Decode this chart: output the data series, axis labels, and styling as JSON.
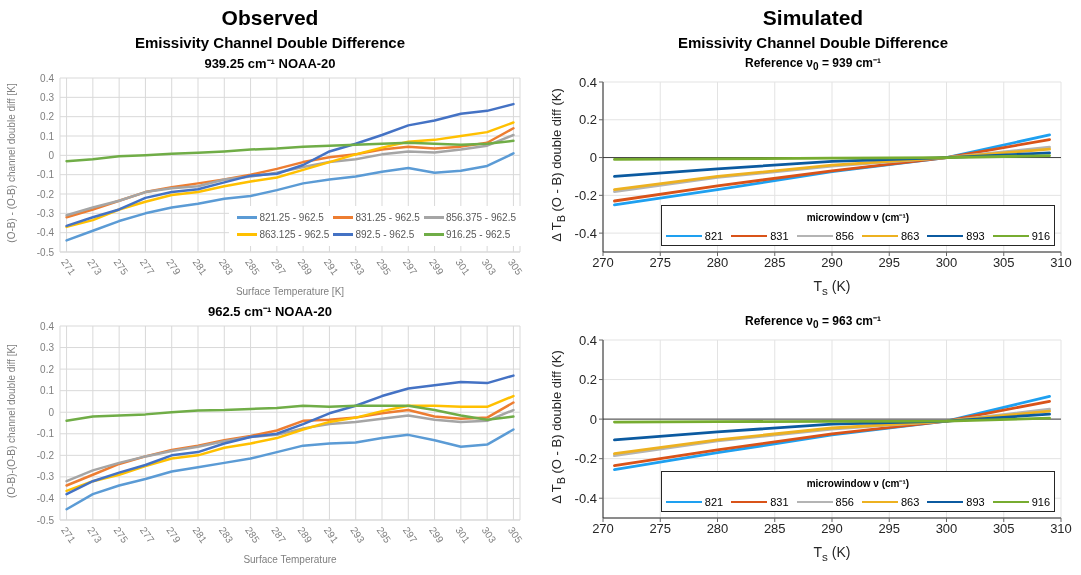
{
  "chart_data": [
    {
      "type": "line",
      "title": "Observed",
      "subtitle": "Emissivity Channel Double Difference",
      "annotations": [
        "939.25 cm⁻¹ NOAA-20"
      ],
      "xlabel": "Surface Temperature [K]",
      "ylabel": "(O-B) - (O-B)  channel double diff [K]",
      "x": [
        271,
        273,
        275,
        277,
        279,
        281,
        283,
        285,
        287,
        289,
        291,
        293,
        295,
        297,
        299,
        301,
        303,
        305
      ],
      "series": [
        {
          "name": "821.25 - 962.5",
          "color": "#5b9bd5",
          "values": [
            -0.44,
            -0.39,
            -0.34,
            -0.3,
            -0.27,
            -0.25,
            -0.225,
            -0.21,
            -0.18,
            -0.145,
            -0.125,
            -0.11,
            -0.085,
            -0.065,
            -0.09,
            -0.08,
            -0.055,
            0.01
          ]
        },
        {
          "name": "831.25 - 962.5",
          "color": "#ed7d31",
          "values": [
            -0.32,
            -0.28,
            -0.235,
            -0.19,
            -0.165,
            -0.145,
            -0.125,
            -0.1,
            -0.07,
            -0.035,
            -0.01,
            0.005,
            0.03,
            0.045,
            0.035,
            0.045,
            0.065,
            0.14
          ]
        },
        {
          "name": "856.375 - 962.5",
          "color": "#a5a5a5",
          "values": [
            -0.31,
            -0.27,
            -0.235,
            -0.19,
            -0.17,
            -0.16,
            -0.125,
            -0.11,
            -0.09,
            -0.06,
            -0.035,
            -0.02,
            0.005,
            0.02,
            0.015,
            0.03,
            0.05,
            0.105
          ]
        },
        {
          "name": "863.125 - 962.5",
          "color": "#ffc000",
          "values": [
            -0.37,
            -0.335,
            -0.28,
            -0.24,
            -0.205,
            -0.19,
            -0.16,
            -0.135,
            -0.115,
            -0.075,
            -0.035,
            0.005,
            0.04,
            0.07,
            0.08,
            0.1,
            0.12,
            0.17
          ]
        },
        {
          "name": "892.5 - 962.5",
          "color": "#4472c4",
          "values": [
            -0.365,
            -0.32,
            -0.28,
            -0.22,
            -0.19,
            -0.175,
            -0.14,
            -0.105,
            -0.095,
            -0.05,
            0.02,
            0.06,
            0.105,
            0.155,
            0.18,
            0.215,
            0.23,
            0.265
          ]
        },
        {
          "name": "916.25 - 962.5",
          "color": "#70ad47",
          "values": [
            -0.03,
            -0.02,
            -0.005,
            0.0,
            0.008,
            0.013,
            0.02,
            0.03,
            0.035,
            0.045,
            0.05,
            0.055,
            0.06,
            0.065,
            0.06,
            0.055,
            0.06,
            0.075
          ]
        }
      ],
      "xlim": [
        270.5,
        305.5
      ],
      "xticks": [
        271,
        273,
        275,
        277,
        279,
        281,
        283,
        285,
        287,
        289,
        291,
        293,
        295,
        297,
        299,
        301,
        303,
        305
      ],
      "ylim": [
        -0.5,
        0.4
      ],
      "yticks": [
        -0.5,
        -0.4,
        -0.3,
        -0.2,
        -0.1,
        0,
        0.1,
        0.2,
        0.3,
        0.4
      ],
      "grid": true,
      "legend": "bottom right",
      "marker": "none",
      "line_style": "solid"
    },
    {
      "type": "line",
      "title": "962.5 cm⁻¹ NOAA-20",
      "xlabel": "Surface Temperature",
      "ylabel": "(O-B)-(O-B)  channel double diff [K]",
      "x": [
        271,
        273,
        275,
        277,
        279,
        281,
        283,
        285,
        287,
        289,
        291,
        293,
        295,
        297,
        299,
        301,
        303,
        305
      ],
      "series": [
        {
          "color": "#5b9bd5",
          "values": [
            -0.45,
            -0.38,
            -0.34,
            -0.31,
            -0.275,
            -0.255,
            -0.235,
            -0.215,
            -0.185,
            -0.155,
            -0.145,
            -0.14,
            -0.12,
            -0.105,
            -0.13,
            -0.16,
            -0.15,
            -0.08
          ]
        },
        {
          "color": "#ed7d31",
          "values": [
            -0.34,
            -0.29,
            -0.24,
            -0.205,
            -0.175,
            -0.155,
            -0.13,
            -0.11,
            -0.085,
            -0.04,
            -0.035,
            -0.025,
            -0.005,
            0.01,
            -0.02,
            -0.03,
            -0.025,
            0.045
          ]
        },
        {
          "color": "#a5a5a5",
          "values": [
            -0.32,
            -0.27,
            -0.235,
            -0.205,
            -0.18,
            -0.16,
            -0.135,
            -0.115,
            -0.105,
            -0.075,
            -0.055,
            -0.045,
            -0.03,
            -0.015,
            -0.035,
            -0.045,
            -0.04,
            0.01
          ]
        },
        {
          "color": "#ffc000",
          "values": [
            -0.365,
            -0.32,
            -0.29,
            -0.25,
            -0.215,
            -0.2,
            -0.165,
            -0.145,
            -0.12,
            -0.08,
            -0.045,
            -0.025,
            0.005,
            0.03,
            0.03,
            0.025,
            0.025,
            0.075
          ]
        },
        {
          "color": "#4472c4",
          "values": [
            -0.38,
            -0.32,
            -0.28,
            -0.245,
            -0.2,
            -0.185,
            -0.145,
            -0.115,
            -0.1,
            -0.055,
            -0.005,
            0.03,
            0.075,
            0.11,
            0.125,
            0.14,
            0.135,
            0.17
          ]
        },
        {
          "color": "#70ad47",
          "values": [
            -0.04,
            -0.02,
            -0.015,
            -0.01,
            0.0,
            0.008,
            0.01,
            0.015,
            0.02,
            0.03,
            0.025,
            0.03,
            0.03,
            0.03,
            0.01,
            -0.015,
            -0.035,
            -0.02
          ]
        }
      ],
      "xlim": [
        270.5,
        305.5
      ],
      "xticks": [
        271,
        273,
        275,
        277,
        279,
        281,
        283,
        285,
        287,
        289,
        291,
        293,
        295,
        297,
        299,
        301,
        303,
        305
      ],
      "ylim": [
        -0.5,
        0.4
      ],
      "yticks": [
        -0.5,
        -0.4,
        -0.3,
        -0.2,
        -0.1,
        0,
        0.1,
        0.2,
        0.3,
        0.4
      ],
      "grid": true,
      "marker": "none",
      "line_style": "solid"
    },
    {
      "type": "line",
      "title": "Simulated",
      "subtitle": "Emissivity Channel Double Difference",
      "annotations": [
        "Reference ν$_{0}$ = 939 cm⁻¹"
      ],
      "xlabel": "T$_{s}$ (K)",
      "ylabel": "Δ T$_{B}$ (O - B) double diff (K)",
      "legend_title": "microwindow ν (cm⁻¹)",
      "x": [
        271,
        280,
        290,
        300,
        309
      ],
      "series": [
        {
          "name": "821",
          "color": "#1ea0f0",
          "values": [
            -0.25,
            -0.17,
            -0.075,
            0,
            0.12
          ]
        },
        {
          "name": "831",
          "color": "#d95319",
          "values": [
            -0.23,
            -0.15,
            -0.07,
            0,
            0.095
          ]
        },
        {
          "name": "856",
          "color": "#b4b4b4",
          "values": [
            -0.18,
            -0.105,
            -0.045,
            0,
            0.055
          ]
        },
        {
          "name": "863",
          "color": "#edb120",
          "values": [
            -0.17,
            -0.1,
            -0.04,
            0,
            0.045
          ]
        },
        {
          "name": "893",
          "color": "#0b5aa0",
          "values": [
            -0.1,
            -0.06,
            -0.02,
            0,
            0.025
          ]
        },
        {
          "name": "916",
          "color": "#77ac30",
          "values": [
            -0.01,
            -0.007,
            -0.003,
            0,
            0.01
          ]
        }
      ],
      "xlim": [
        270,
        310
      ],
      "xticks": [
        270,
        275,
        280,
        285,
        290,
        295,
        300,
        305,
        310
      ],
      "ylim": [
        -0.5,
        0.4
      ],
      "yticks": [
        -0.4,
        -0.2,
        0,
        0.2,
        0.4
      ],
      "grid": true,
      "legend": "bottom right",
      "marker": "none",
      "line_style": "solid",
      "ref_lines": [
        {
          "axis": "y",
          "value": 0,
          "color": "#404040"
        }
      ]
    },
    {
      "type": "line",
      "title": "Reference ν$_{0}$ = 963 cm⁻¹",
      "xlabel": "T$_{s}$ (K)",
      "ylabel": "Δ T$_{B}$ (O - B) double diff (K)",
      "legend_title": "microwindow ν (cm⁻¹)",
      "x": [
        271,
        280,
        290,
        300,
        309
      ],
      "series": [
        {
          "name": "821",
          "color": "#1ea0f0",
          "values": [
            -0.255,
            -0.17,
            -0.08,
            -0.01,
            0.115
          ]
        },
        {
          "name": "831",
          "color": "#d95319",
          "values": [
            -0.235,
            -0.155,
            -0.075,
            -0.01,
            0.09
          ]
        },
        {
          "name": "856",
          "color": "#b4b4b4",
          "values": [
            -0.185,
            -0.11,
            -0.05,
            -0.01,
            0.05
          ]
        },
        {
          "name": "863",
          "color": "#edb120",
          "values": [
            -0.175,
            -0.105,
            -0.045,
            -0.01,
            0.04
          ]
        },
        {
          "name": "893",
          "color": "#0b5aa0",
          "values": [
            -0.105,
            -0.065,
            -0.025,
            -0.01,
            0.025
          ]
        },
        {
          "name": "916",
          "color": "#77ac30",
          "values": [
            -0.015,
            -0.013,
            -0.011,
            -0.01,
            0.005
          ]
        }
      ],
      "xlim": [
        270,
        310
      ],
      "xticks": [
        270,
        275,
        280,
        285,
        290,
        295,
        300,
        305,
        310
      ],
      "ylim": [
        -0.5,
        0.4
      ],
      "yticks": [
        -0.4,
        -0.2,
        0,
        0.2,
        0.4
      ],
      "grid": true,
      "legend": "bottom right",
      "marker": "none",
      "line_style": "solid",
      "ref_lines": [
        {
          "axis": "y",
          "value": 0,
          "color": "#404040"
        }
      ]
    }
  ]
}
